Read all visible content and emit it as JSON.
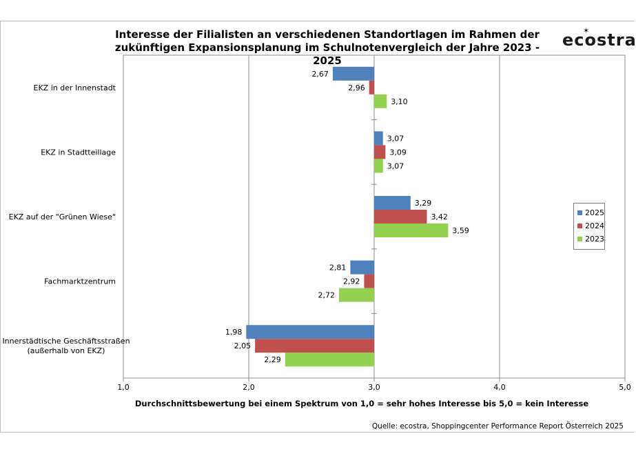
{
  "chart_data": {
    "type": "bar",
    "orientation": "horizontal",
    "title_line1": "Interesse der Filialisten an verschiedenen Standortlagen im Rahmen der",
    "title_line2": "zukünftigen Expansionsplanung im Schulnotenvergleich der Jahre 2023 - 2025",
    "xlabel": "Durchschnittsbewertung bei einem Spektrum von 1,0 = sehr hohes Interesse bis 5,0 =  kein Interesse",
    "source": "Quelle: ecostra, Shoppingcenter Performance Report Österreich 2025",
    "logo": "ecostra",
    "baseline": 3.0,
    "xlim": [
      1.0,
      5.0
    ],
    "x_ticks": [
      "1,0",
      "2,0",
      "3,0",
      "4,0",
      "5,0"
    ],
    "grid": true,
    "legend_position": "right",
    "categories": [
      [
        "EKZ in der Innenstadt"
      ],
      [
        "EKZ in Stadtteillage"
      ],
      [
        "EKZ auf der \"Grünen Wiese\""
      ],
      [
        "Fachmarktzentrum"
      ],
      [
        "Innerstädtische Geschäftsstraßen",
        "(außerhalb von EKZ)"
      ]
    ],
    "series": [
      {
        "name": "2025",
        "color": "#4f81bd",
        "values": [
          2.67,
          3.07,
          3.29,
          2.81,
          1.98
        ],
        "labels": [
          "2,67",
          "3,07",
          "3,29",
          "2,81",
          "1,98"
        ]
      },
      {
        "name": "2024",
        "color": "#c0504d",
        "values": [
          2.96,
          3.09,
          3.42,
          2.92,
          2.05
        ],
        "labels": [
          "2,96",
          "3,09",
          "3,42",
          "2,92",
          "2,05"
        ]
      },
      {
        "name": "2023",
        "color": "#92d050",
        "values": [
          3.1,
          3.07,
          3.59,
          2.72,
          2.29
        ],
        "labels": [
          "3,10",
          "3,07",
          "3,59",
          "2,72",
          "2,29"
        ]
      }
    ]
  }
}
